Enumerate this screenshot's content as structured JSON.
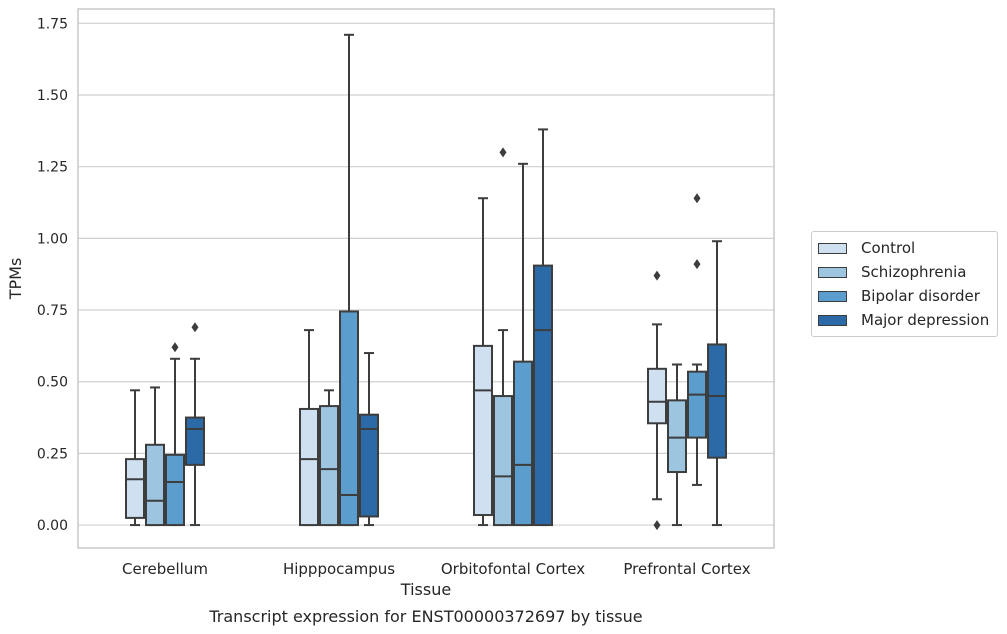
{
  "chart_data": {
    "type": "box",
    "title": "",
    "caption": "Transcript expression for ENST00000372697 by tissue",
    "xlabel": "Tissue",
    "ylabel": "TPMs",
    "ylim": [
      -0.08,
      1.8
    ],
    "yticks": [
      "0.00",
      "0.25",
      "0.50",
      "0.75",
      "1.00",
      "1.25",
      "1.50",
      "1.75"
    ],
    "ytick_values": [
      0,
      0.25,
      0.5,
      0.75,
      1.0,
      1.25,
      1.5,
      1.75
    ],
    "grid": "horizontal",
    "legend_position": "right",
    "categories": [
      "Cerebellum",
      "Hipppocampus",
      "Orbitofontal Cortex",
      "Prefrontal Cortex"
    ],
    "series": [
      {
        "name": "Control",
        "color": "#cfe0f1",
        "boxes": [
          {
            "whislo": 0.0,
            "q1": 0.025,
            "med": 0.16,
            "q3": 0.23,
            "whishi": 0.47,
            "fliers": []
          },
          {
            "whislo": 0.0,
            "q1": 0.0,
            "med": 0.23,
            "q3": 0.405,
            "whishi": 0.68,
            "fliers": []
          },
          {
            "whislo": 0.0,
            "q1": 0.035,
            "med": 0.47,
            "q3": 0.625,
            "whishi": 1.14,
            "fliers": []
          },
          {
            "whislo": 0.09,
            "q1": 0.355,
            "med": 0.43,
            "q3": 0.545,
            "whishi": 0.7,
            "fliers": [
              0.87,
              0.0
            ]
          }
        ]
      },
      {
        "name": "Schizophrenia",
        "color": "#9dc5e0",
        "boxes": [
          {
            "whislo": 0.0,
            "q1": 0.0,
            "med": 0.085,
            "q3": 0.28,
            "whishi": 0.48,
            "fliers": []
          },
          {
            "whislo": 0.0,
            "q1": 0.0,
            "med": 0.195,
            "q3": 0.415,
            "whishi": 0.47,
            "fliers": []
          },
          {
            "whislo": 0.0,
            "q1": 0.0,
            "med": 0.17,
            "q3": 0.45,
            "whishi": 0.68,
            "fliers": [
              1.3
            ]
          },
          {
            "whislo": 0.0,
            "q1": 0.185,
            "med": 0.305,
            "q3": 0.435,
            "whishi": 0.56,
            "fliers": []
          }
        ]
      },
      {
        "name": "Bipolar disorder",
        "color": "#5b9dcc",
        "boxes": [
          {
            "whislo": 0.0,
            "q1": 0.0,
            "med": 0.15,
            "q3": 0.245,
            "whishi": 0.58,
            "fliers": [
              0.62
            ]
          },
          {
            "whislo": 0.0,
            "q1": 0.0,
            "med": 0.105,
            "q3": 0.745,
            "whishi": 1.71,
            "fliers": []
          },
          {
            "whislo": 0.0,
            "q1": 0.0,
            "med": 0.21,
            "q3": 0.57,
            "whishi": 1.26,
            "fliers": []
          },
          {
            "whislo": 0.14,
            "q1": 0.305,
            "med": 0.455,
            "q3": 0.535,
            "whishi": 0.56,
            "fliers": [
              0.91,
              1.14
            ]
          }
        ]
      },
      {
        "name": "Major depression",
        "color": "#2b6aa7",
        "boxes": [
          {
            "whislo": 0.0,
            "q1": 0.21,
            "med": 0.335,
            "q3": 0.375,
            "whishi": 0.58,
            "fliers": [
              0.69
            ]
          },
          {
            "whislo": 0.0,
            "q1": 0.03,
            "med": 0.335,
            "q3": 0.385,
            "whishi": 0.6,
            "fliers": []
          },
          {
            "whislo": 0.0,
            "q1": 0.0,
            "med": 0.68,
            "q3": 0.905,
            "whishi": 1.38,
            "fliers": []
          },
          {
            "whislo": 0.0,
            "q1": 0.235,
            "med": 0.45,
            "q3": 0.63,
            "whishi": 0.99,
            "fliers": []
          }
        ]
      }
    ]
  }
}
